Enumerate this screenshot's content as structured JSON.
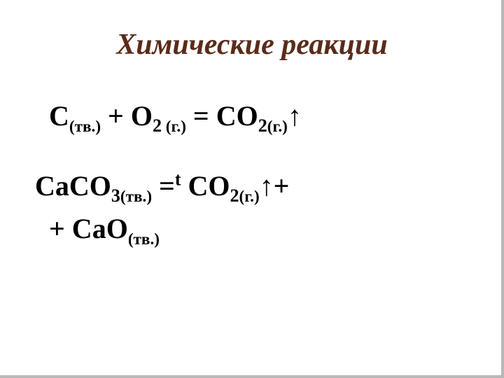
{
  "title": {
    "text": "Химические реакции",
    "color": "#5a2c1a",
    "fontsize": 42
  },
  "equation1": {
    "parts": {
      "c": "С",
      "c_state": "(тв.)",
      "plus1": " + ",
      "o": "О",
      "o_sub": "2",
      "o_state": " (г.)",
      "eq": " = ",
      "co": "СО",
      "co_sub": "2",
      "co_state": "(г.)",
      "arrow": "↑"
    },
    "fontsize": 40,
    "color": "#000000"
  },
  "equation2": {
    "parts": {
      "caco": "СаСО",
      "caco_sub": "3",
      "caco_state": "(тв.)",
      "eq": " =",
      "t": "t",
      "space": " ",
      "co": "СО",
      "co_sub": "2",
      "co_state": "(г.)",
      "arrow": "↑",
      "plus_end": "+",
      "plus_start": "+ ",
      "cao_c": "С",
      "cao_a": "а",
      "cao_o": "О",
      "cao_state": "(тв.)"
    },
    "fontsize": 40,
    "color": "#000000"
  },
  "styles": {
    "background": "#ffffff",
    "shadow": "#b8b8b8"
  }
}
